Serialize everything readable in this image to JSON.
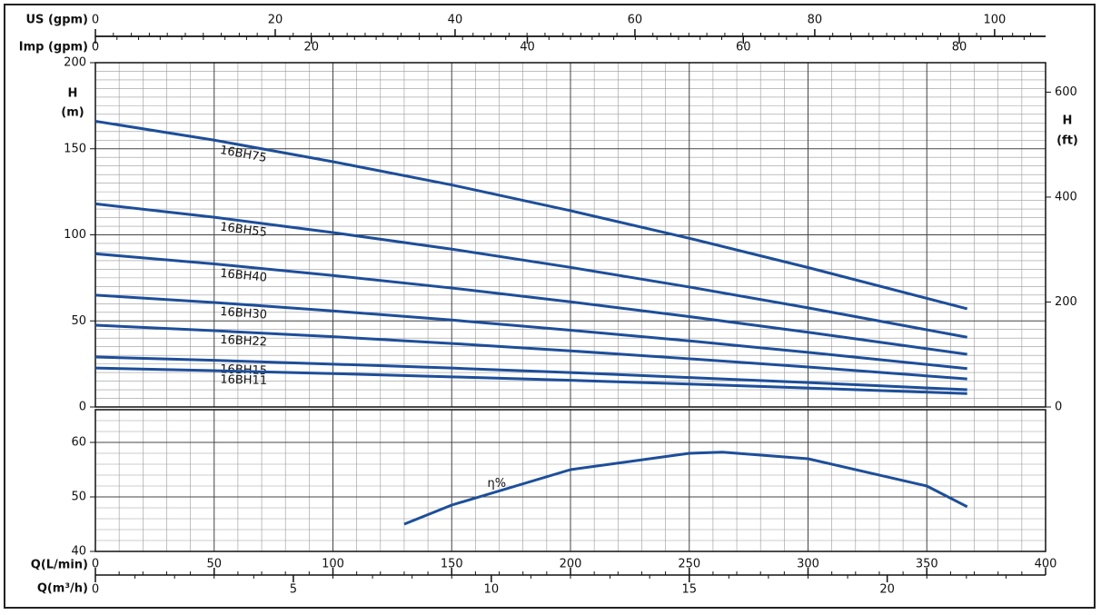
{
  "chart_data": [
    {
      "type": "line",
      "xlim": [
        0,
        400
      ],
      "xticks": [
        0,
        50,
        100,
        150,
        200,
        250,
        300,
        350,
        400
      ],
      "ylabel": [
        "H",
        "(m)"
      ],
      "ylim": [
        0,
        200
      ],
      "yticks": [
        0,
        50,
        100,
        150,
        200
      ],
      "y2label": [
        "H",
        "(ft)"
      ],
      "y2lim": [
        0,
        656.17
      ],
      "y2ticks": [
        0,
        200,
        400,
        600
      ],
      "grid": true,
      "top_axes": [
        {
          "label": "US (gpm)",
          "xlim": [
            0,
            105.67
          ],
          "xticks": [
            0,
            20,
            40,
            60,
            80,
            100
          ]
        },
        {
          "label": "Imp (gpm)",
          "xlim": [
            0,
            87.99
          ],
          "xticks": [
            0,
            20,
            40,
            60,
            80
          ]
        }
      ],
      "x": [
        0,
        50,
        100,
        150,
        200,
        250,
        300,
        367
      ],
      "series": [
        {
          "name": "16BH75",
          "color": "#1d4e9a",
          "values": [
            166,
            155,
            142.5,
            129,
            114,
            98,
            81,
            57
          ]
        },
        {
          "name": "16BH55",
          "color": "#1d4e9a",
          "values": [
            118,
            110.2,
            101.3,
            91.7,
            81.1,
            69.7,
            57.6,
            40.5
          ]
        },
        {
          "name": "16BH40",
          "color": "#1d4e9a",
          "values": [
            89,
            83.1,
            76.4,
            69.1,
            61.1,
            52.5,
            43.4,
            30.6
          ]
        },
        {
          "name": "16BH30",
          "color": "#1d4e9a",
          "values": [
            65,
            60.7,
            55.8,
            50.5,
            44.6,
            38.4,
            31.7,
            22.3
          ]
        },
        {
          "name": "16BH22",
          "color": "#1d4e9a",
          "values": [
            47.5,
            44.3,
            40.8,
            36.9,
            32.6,
            28,
            23.2,
            16.3
          ]
        },
        {
          "name": "16BH15",
          "color": "#1d4e9a",
          "values": [
            29,
            27.1,
            24.9,
            22.6,
            20,
            17.1,
            14.2,
            10
          ]
        },
        {
          "name": "16BH11",
          "color": "#1d4e9a",
          "values": [
            22.6,
            21.1,
            19.4,
            17.5,
            15.5,
            13.3,
            11,
            7.8
          ]
        }
      ]
    },
    {
      "type": "line",
      "xlabel": "Q(L/min)",
      "xlim": [
        0,
        400
      ],
      "xticks": [
        0,
        50,
        100,
        150,
        200,
        250,
        300,
        350,
        400
      ],
      "ylim": [
        40,
        66
      ],
      "yticks": [
        40,
        50,
        60
      ],
      "grid": true,
      "bottom_axes": [
        {
          "label": "Q(m³/h)",
          "xlim": [
            0,
            24
          ],
          "xticks": [
            0,
            5,
            10,
            15,
            20
          ]
        }
      ],
      "x": [
        130,
        150,
        200,
        250,
        264,
        300,
        350,
        367
      ],
      "series": [
        {
          "name": "η%",
          "color": "#1d4e9a",
          "values": [
            45,
            48.5,
            55,
            58,
            58.2,
            57,
            52,
            48.2
          ]
        }
      ]
    }
  ]
}
